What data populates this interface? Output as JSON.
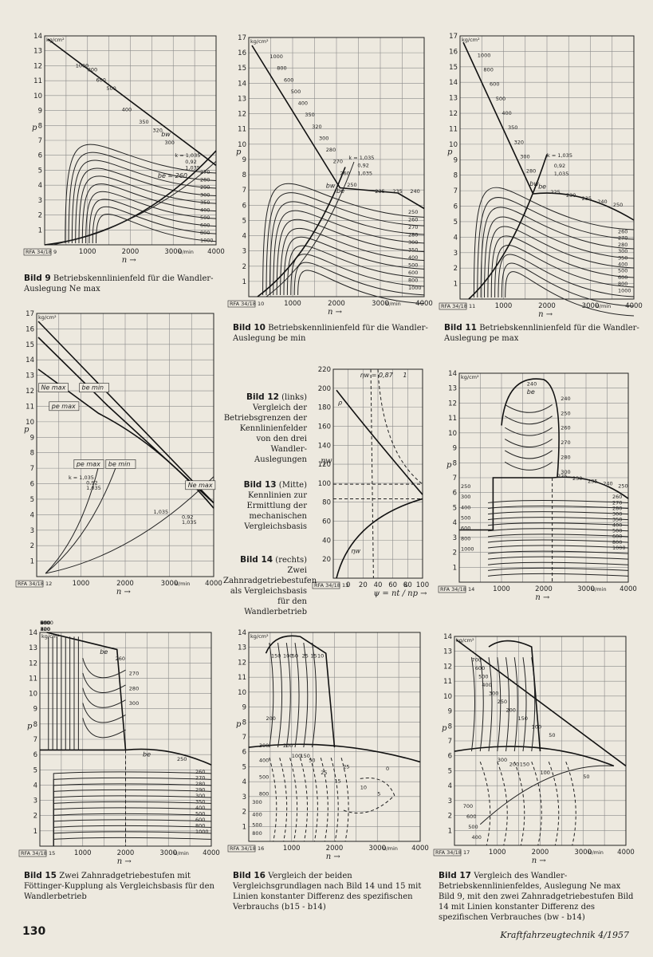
{
  "figures": [
    {
      "id": "bild9",
      "caption_label": "Bild 9",
      "caption_text": "Betriebskennlinienfeld für die Wandler-Auslegung Ne max",
      "yunit": "kg/cm²",
      "yvar": "p",
      "xvar": "n",
      "xunit": "U/min",
      "x_ticks": [
        "1000",
        "2000",
        "3000",
        "4000"
      ],
      "y_ticks": [
        "1",
        "2",
        "3",
        "4",
        "5",
        "6",
        "7",
        "8",
        "9",
        "10",
        "11",
        "12",
        "13",
        "14"
      ],
      "stamp": "RFA 34/18 9",
      "envelope_labels": [
        "1000",
        "800",
        "600",
        "500",
        "400",
        "350",
        "320",
        "300"
      ],
      "right_labels": [
        "270",
        "280",
        "290",
        "300",
        "350",
        "400",
        "500",
        "600",
        "800",
        "1000"
      ],
      "k_labels": [
        "k = 1,035",
        "0,92",
        "1,035"
      ],
      "be_label": "be = 260",
      "bw_label": "bw"
    },
    {
      "id": "bild10",
      "caption_label": "Bild 10",
      "caption_text": "Betriebskennlinienfeld für die Wandler-Auslegung be min",
      "yunit": "kg/cm²",
      "yvar": "p",
      "xvar": "n",
      "xunit": "U/min",
      "x_ticks": [
        "1000",
        "2000",
        "3000",
        "4000"
      ],
      "y_ticks": [
        "1",
        "2",
        "3",
        "4",
        "5",
        "6",
        "7",
        "8",
        "9",
        "10",
        "11",
        "12",
        "13",
        "14",
        "15",
        "16",
        "17"
      ],
      "stamp": "RFA 34/18 10",
      "envelope_labels": [
        "1000",
        "800",
        "600",
        "500",
        "400",
        "350",
        "320",
        "300",
        "280",
        "270",
        "260",
        "250"
      ],
      "right_labels": [
        "250",
        "260",
        "270",
        "280",
        "300",
        "350",
        "400",
        "500",
        "600",
        "800",
        "1000"
      ],
      "top_labels": [
        "235",
        "235",
        "240"
      ],
      "k_labels": [
        "k = 1,035",
        "0,92",
        "1,035"
      ],
      "be_label": "be",
      "bw_label": "bw"
    },
    {
      "id": "bild11",
      "caption_label": "Bild 11",
      "caption_text": "Betriebskennlinienfeld für die Wandler-Auslegung pe max",
      "yunit": "kg/cm²",
      "yvar": "p",
      "xvar": "n",
      "xunit": "U/min",
      "x_ticks": [
        "1000",
        "2000",
        "3000",
        "4000"
      ],
      "y_ticks": [
        "1",
        "2",
        "3",
        "4",
        "5",
        "6",
        "7",
        "8",
        "9",
        "10",
        "11",
        "12",
        "13",
        "14",
        "15",
        "16",
        "17"
      ],
      "stamp": "RFA 34/18 11",
      "envelope_labels": [
        "1000",
        "800",
        "600",
        "500",
        "400",
        "350",
        "320",
        "300",
        "280"
      ],
      "right_labels": [
        "260",
        "270",
        "280",
        "300",
        "350",
        "400",
        "500",
        "600",
        "800",
        "1000"
      ],
      "top_labels": [
        "225",
        "230",
        "235",
        "240",
        "250"
      ],
      "k_labels": [
        "k = 1,035",
        "0,92",
        "1,035"
      ],
      "be_label": "be",
      "bw_label": "bw"
    },
    {
      "id": "bild12",
      "caption_label": "Bild 12",
      "caption_suffix": "(links)",
      "caption_text": "Vergleich der Betriebsgrenzen der Kennlinienfelder von den drei Wandler-Auslegungen",
      "yunit": "kg/cm²",
      "yvar": "p",
      "xvar": "n",
      "xunit": "U/min",
      "x_ticks": [
        "1000",
        "2000",
        "3000",
        "4000"
      ],
      "y_ticks": [
        "1",
        "2",
        "3",
        "4",
        "5",
        "6",
        "7",
        "8",
        "9",
        "10",
        "11",
        "12",
        "13",
        "14",
        "15",
        "16",
        "17"
      ],
      "stamp": "RFA 34/18 12",
      "box_labels": [
        "Ne max",
        "be min",
        "pe max",
        "pe max",
        "be min",
        "Ne max"
      ],
      "k_labels": [
        "k = 1,035",
        "0,92",
        "1,035",
        "1,035",
        "0,92",
        "1,035"
      ]
    },
    {
      "id": "bild13",
      "caption_label": "Bild 13",
      "caption_suffix": "(Mitte)",
      "caption_text": "Kennlinien zur Ermittlung der mechanischen Vergleichsbasis",
      "yvar": "ηw",
      "xvar": "ψ = nt / np",
      "xunit": "%",
      "x_ticks": [
        "0",
        "20",
        "40",
        "60",
        "80",
        "100"
      ],
      "y_ticks": [
        "20",
        "40",
        "60",
        "80",
        "100",
        "120",
        "140",
        "160",
        "180",
        "200",
        "220"
      ],
      "stamp": "RFA 34/18 13",
      "curve_labels": [
        "ηw = 0,87",
        "1",
        "ρ",
        "ηw"
      ]
    },
    {
      "id": "bild14",
      "caption_label": "Bild 14",
      "caption_suffix": "(rechts)",
      "caption_text": "Zwei Zahnradgetriebestufen als Vergleichsbasis für den Wandlerbetrieb",
      "yunit": "kg/cm²",
      "yvar": "p",
      "xvar": "n",
      "xunit": "U/min",
      "x_ticks": [
        "1000",
        "2000",
        "3000",
        "4000"
      ],
      "y_ticks": [
        "1",
        "2",
        "3",
        "4",
        "5",
        "6",
        "7",
        "8",
        "9",
        "10",
        "11",
        "12",
        "13",
        "14"
      ],
      "stamp": "RFA 34/18 14",
      "upper_labels": [
        "240",
        "240",
        "250",
        "260",
        "270",
        "280",
        "300"
      ],
      "lower_labels": [
        "225",
        "230",
        "235",
        "240",
        "250",
        "260",
        "270",
        "280",
        "300",
        "350",
        "400",
        "500",
        "600",
        "800",
        "1000"
      ],
      "left_labels": [
        "250",
        "300",
        "400",
        "500",
        "600",
        "800",
        "1000"
      ],
      "be_label": "be"
    },
    {
      "id": "bild15",
      "caption_label": "Bild 15",
      "caption_text": "Zwei Zahnradgetriebestufen mit Föttinger-Kupplung als Vergleichsbasis für den Wandlerbetrieb",
      "yunit": "kg/cm²",
      "yvar": "p",
      "xvar": "n",
      "xunit": "U/min",
      "x_ticks": [
        "1000",
        "2000",
        "3000",
        "4000"
      ],
      "y_ticks": [
        "1",
        "2",
        "3",
        "4",
        "5",
        "6",
        "7",
        "8",
        "9",
        "10",
        "11",
        "12",
        "13",
        "14"
      ],
      "stamp": "RFA 34/18 15",
      "top_labels": [
        "1000",
        "600",
        "500",
        "400",
        "350",
        "800",
        "500",
        "400",
        "320"
      ],
      "upper_labels": [
        "260",
        "270",
        "280",
        "300"
      ],
      "lower_labels": [
        "250",
        "260",
        "270",
        "280",
        "290",
        "300",
        "350",
        "400",
        "500",
        "600",
        "800",
        "1000"
      ],
      "be_label": "be"
    },
    {
      "id": "bild16",
      "caption_label": "Bild 16",
      "caption_text": "Vergleich der beiden Vergleichsgrundlagen nach Bild 14 und 15 mit Linien konstanter Differenz des spezifischen Verbrauchs (b15 - b14)",
      "yunit": "kg/cm²",
      "yvar": "p",
      "xvar": "n",
      "xunit": "U/min",
      "x_ticks": [
        "1000",
        "2000",
        "3000",
        "4000"
      ],
      "y_ticks": [
        "1",
        "2",
        "3",
        "4",
        "5",
        "6",
        "7",
        "8",
        "9",
        "10",
        "11",
        "12",
        "13",
        "14"
      ],
      "stamp": "RFA 34/18 16",
      "labels": [
        "150",
        "100",
        "50",
        "25",
        "15",
        "10",
        "200",
        "300",
        "400",
        "500",
        "800",
        "200",
        "100",
        "150",
        "50",
        "25",
        "15",
        "10",
        "5",
        "25",
        "0",
        "300",
        "400",
        "500",
        "800"
      ]
    },
    {
      "id": "bild17",
      "caption_label": "Bild 17",
      "caption_text": "Vergleich des Wandler-Betriebskennlinienfeldes, Auslegung Ne max Bild 9, mit den zwei Zahnradgetriebestufen Bild 14 mit Linien konstanter Differenz des spezifischen Verbrauches (bw - b14)",
      "yunit": "kg/cm²",
      "yvar": "p",
      "xvar": "n",
      "xunit": "U/min",
      "x_ticks": [
        "1000",
        "2000",
        "3000",
        "4000"
      ],
      "y_ticks": [
        "1",
        "2",
        "3",
        "4",
        "5",
        "6",
        "7",
        "8",
        "9",
        "10",
        "11",
        "12",
        "13",
        "14"
      ],
      "stamp": "RFA 34/18 17",
      "labels": [
        "700",
        "600",
        "500",
        "400",
        "300",
        "250",
        "200",
        "150",
        "100",
        "50",
        "300",
        "200",
        "150",
        "100",
        "50",
        "700",
        "600",
        "500",
        "400"
      ]
    }
  ],
  "footer": {
    "page_number": "130",
    "magazine": "Kraftfahrzeugtechnik 4/1957"
  }
}
